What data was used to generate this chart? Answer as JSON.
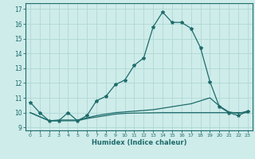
{
  "bg_color": "#ceecea",
  "grid_color": "#b0d8d4",
  "line_color": "#1e6b6b",
  "xlabel": "Humidex (Indice chaleur)",
  "xlim": [
    -0.5,
    23.5
  ],
  "ylim": [
    8.8,
    17.4
  ],
  "yticks": [
    9,
    10,
    11,
    12,
    13,
    14,
    15,
    16,
    17
  ],
  "xticks": [
    0,
    1,
    2,
    3,
    4,
    5,
    6,
    7,
    8,
    9,
    10,
    11,
    12,
    13,
    14,
    15,
    16,
    17,
    18,
    19,
    20,
    21,
    22,
    23
  ],
  "curve1_x": [
    0,
    1,
    2,
    3,
    4,
    5,
    6,
    7,
    8,
    9,
    10,
    11,
    12,
    13,
    14,
    15,
    16,
    17,
    18,
    19,
    20,
    21,
    22,
    23
  ],
  "curve1_y": [
    10.7,
    10.0,
    9.45,
    9.45,
    10.0,
    9.45,
    9.8,
    10.8,
    11.1,
    11.9,
    12.2,
    13.2,
    13.7,
    15.8,
    16.8,
    16.1,
    16.1,
    15.7,
    14.4,
    12.1,
    10.4,
    10.0,
    9.8,
    10.1
  ],
  "curve2_x": [
    0,
    2,
    3,
    4,
    5,
    6,
    7,
    8,
    9,
    10,
    11,
    12,
    13,
    14,
    15,
    16,
    17,
    18,
    19,
    20,
    21,
    22,
    23
  ],
  "curve2_y": [
    10.0,
    9.45,
    9.5,
    9.5,
    9.5,
    9.65,
    9.8,
    9.9,
    10.0,
    10.05,
    10.1,
    10.15,
    10.2,
    10.3,
    10.4,
    10.5,
    10.6,
    10.8,
    11.0,
    10.45,
    10.05,
    9.95,
    10.1
  ],
  "curve3_x": [
    0,
    2,
    3,
    4,
    5,
    6,
    7,
    8,
    9,
    10,
    11,
    12,
    13,
    14,
    15,
    16,
    17,
    18,
    19,
    20,
    21,
    22,
    23
  ],
  "curve3_y": [
    10.0,
    9.45,
    9.45,
    9.45,
    9.45,
    9.6,
    9.7,
    9.8,
    9.9,
    9.95,
    9.97,
    9.98,
    9.99,
    10.0,
    10.0,
    10.0,
    10.0,
    10.0,
    10.0,
    10.0,
    10.0,
    10.0,
    10.0
  ]
}
